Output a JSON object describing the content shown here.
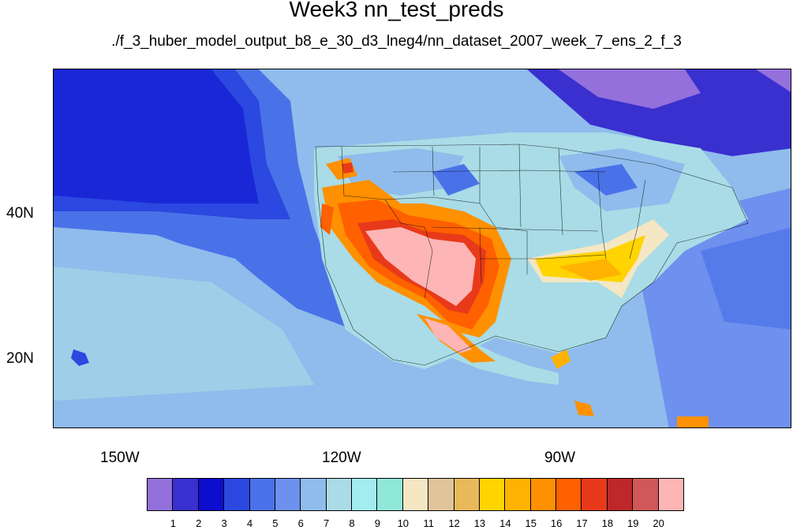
{
  "title": "Week3 nn_test_preds",
  "subtitle": "./f_3_huber_model_output_b8_e_30_d3_lneg4/nn_dataset_2007_week_7_ens_2_f_3",
  "lat_labels": [
    "40N",
    "20N"
  ],
  "lon_labels": [
    "150W",
    "120W",
    "90W"
  ],
  "legend": {
    "labels": [
      "1",
      "2",
      "3",
      "4",
      "5",
      "6",
      "7",
      "8",
      "9",
      "10",
      "11",
      "12",
      "13",
      "14",
      "15",
      "16",
      "17",
      "18",
      "19",
      "20"
    ],
    "colors": [
      "#9370db",
      "#3a2fcf",
      "#0d0dcf",
      "#2b48e0",
      "#4a72e8",
      "#6e90ee",
      "#8fbcec",
      "#a9dce6",
      "#a3ecf0",
      "#8fe8d8",
      "#f5e6c4",
      "#e1c49a",
      "#e8b85a",
      "#ffd400",
      "#ffb300",
      "#ff9000",
      "#ff6000",
      "#e83a1a",
      "#be2828",
      "#d05858",
      "#fdb5b5"
    ]
  }
}
